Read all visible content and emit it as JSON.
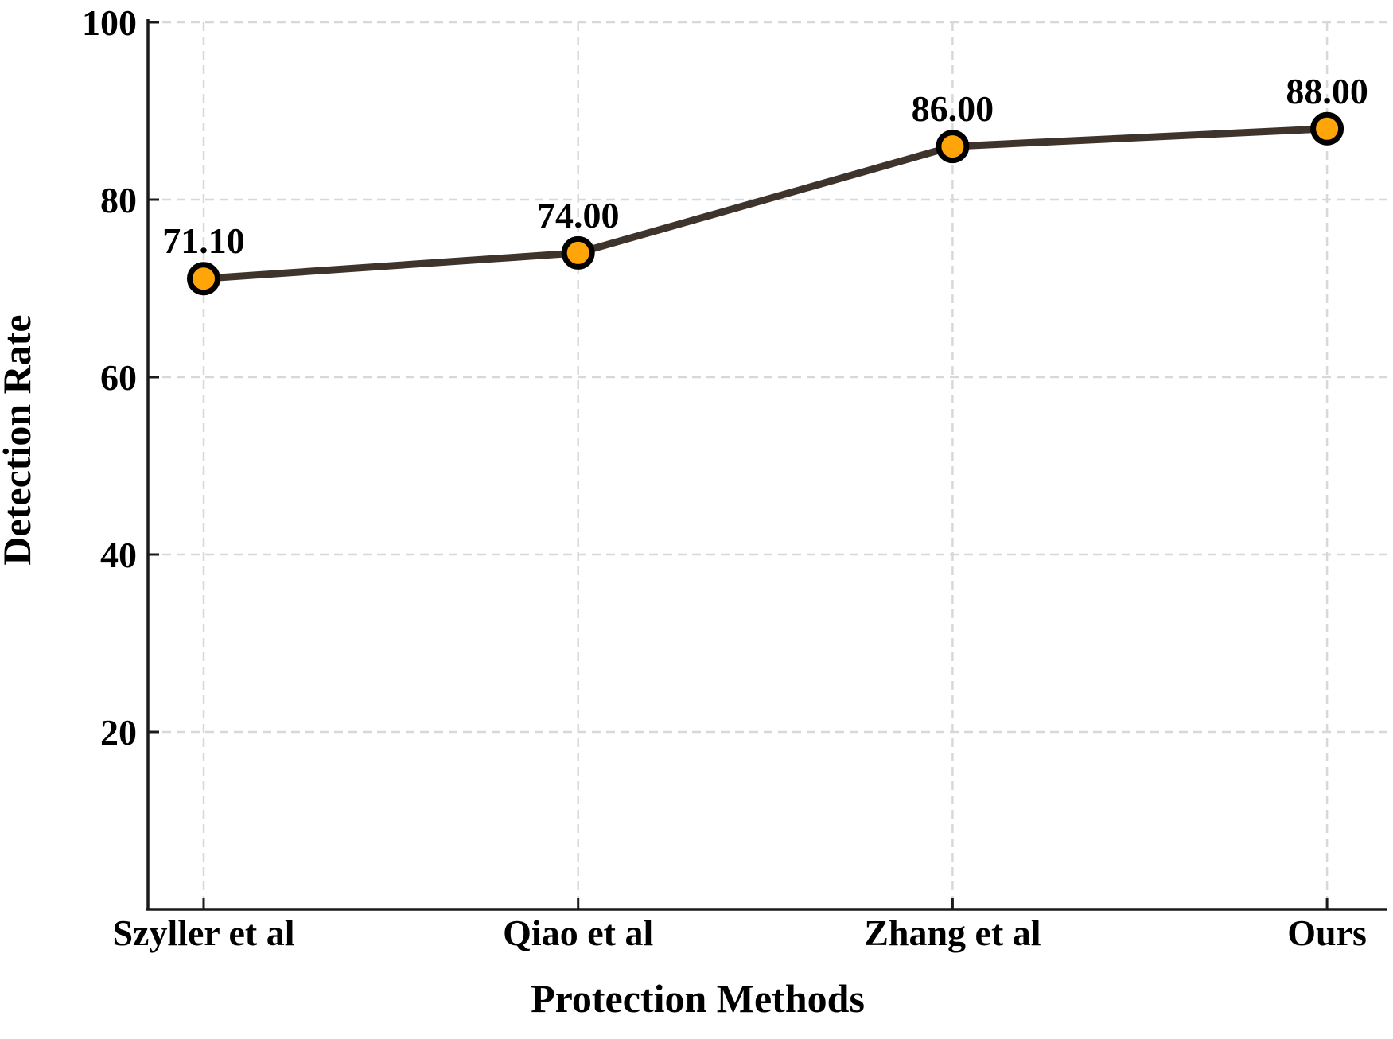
{
  "chart_data": {
    "type": "line",
    "title": "",
    "categories": [
      "Szyller et al",
      "Qiao et al",
      "Zhang et al",
      "Ours"
    ],
    "series": [
      {
        "name": "Detection Rate",
        "values": [
          71.1,
          74.0,
          86.0,
          88.0
        ],
        "point_labels": [
          "71.10",
          "74.00",
          "86.00",
          "88.00"
        ]
      }
    ],
    "xlabel": "Protection Methods",
    "ylabel": "Detection Rate",
    "yticks": [
      20,
      40,
      60,
      80,
      100
    ],
    "ytick_labels": [
      "20",
      "40",
      "60",
      "80",
      "100"
    ],
    "ylim": [
      0,
      100
    ],
    "grid": "dashed-both-axes",
    "legend_position": "none",
    "colors": {
      "line": "#3E342C",
      "marker_fill": "#FFA50A",
      "marker_edge": "#000000",
      "grid": "#D8D8D8",
      "axis": "#1A1A1A",
      "text": "#000000",
      "background": "#FFFFFF"
    }
  }
}
